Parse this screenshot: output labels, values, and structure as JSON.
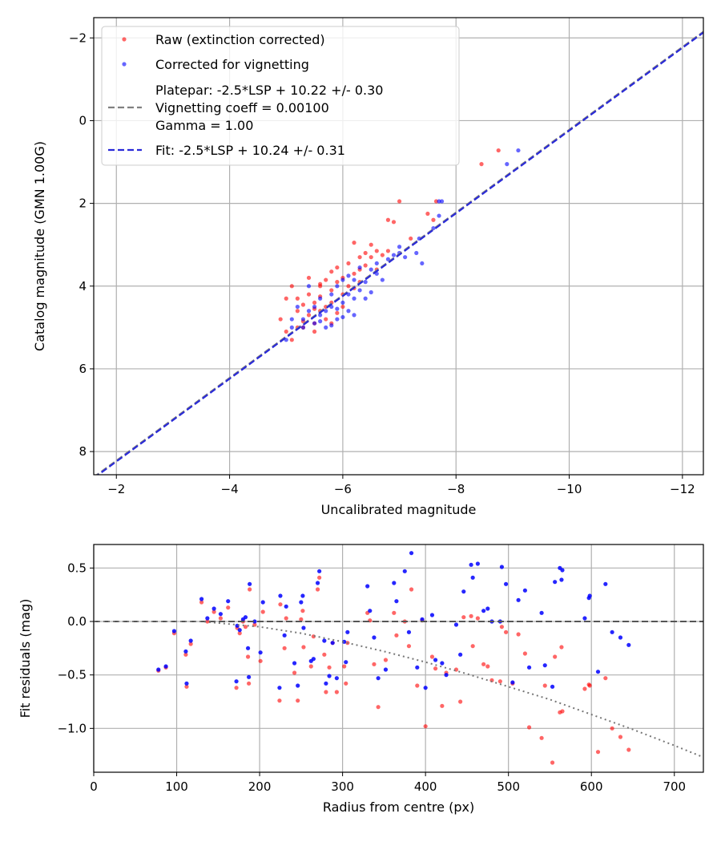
{
  "chart_data": [
    {
      "type": "scatter",
      "xlabel": "Uncalibrated magnitude",
      "ylabel": "Catalog magnitude (GMN 1.00G)",
      "xlim": [
        -1.6,
        -12.37
      ],
      "ylim": [
        8.56,
        -2.49
      ],
      "xticks": [
        -2,
        -4,
        -6,
        -8,
        -10,
        -12
      ],
      "xtick_labels": [
        "−2",
        "−4",
        "−6",
        "−8",
        "−10",
        "−12"
      ],
      "yticks": [
        -2,
        0,
        2,
        4,
        6,
        8
      ],
      "ytick_labels": [
        "−2",
        "0",
        "2",
        "4",
        "6",
        "8"
      ],
      "grid": true,
      "legend_position": "top-left",
      "legend": {
        "raw": "Raw (extinction corrected)",
        "corrected": "Corrected for vignetting",
        "platepar_1": "Platepar: -2.5*LSP + 10.22 +/- 0.30",
        "platepar_2": "Vignetting coeff = 0.00100",
        "platepar_3": "Gamma = 1.00",
        "fit": "Fit: -2.5*LSP + 10.24 +/- 0.31"
      },
      "colors": {
        "raw": "#ff0000",
        "corrected": "#0000ff",
        "platepar": "#808080",
        "fit": "#2a2ad8"
      },
      "platepar_line": {
        "slope": 1,
        "intercept": 10.22
      },
      "fit_line": {
        "slope": 1,
        "intercept": 10.24
      },
      "series": [
        {
          "name": "Raw (extinction corrected)",
          "points": [
            [
              -4.9,
              4.8
            ],
            [
              -5.0,
              4.3
            ],
            [
              -5.1,
              4.0
            ],
            [
              -5.1,
              5.3
            ],
            [
              -5.2,
              4.6
            ],
            [
              -5.3,
              4.85
            ],
            [
              -5.3,
              4.45
            ],
            [
              -5.3,
              5.0
            ],
            [
              -5.4,
              3.8
            ],
            [
              -5.4,
              4.2
            ],
            [
              -5.4,
              4.7
            ],
            [
              -5.5,
              4.4
            ],
            [
              -5.5,
              4.9
            ],
            [
              -5.5,
              5.1
            ],
            [
              -5.6,
              4.25
            ],
            [
              -5.6,
              4.6
            ],
            [
              -5.6,
              3.95
            ],
            [
              -5.7,
              4.5
            ],
            [
              -5.7,
              3.85
            ],
            [
              -5.7,
              4.8
            ],
            [
              -5.8,
              3.65
            ],
            [
              -5.8,
              4.1
            ],
            [
              -5.8,
              4.4
            ],
            [
              -5.9,
              3.55
            ],
            [
              -5.9,
              3.9
            ],
            [
              -5.9,
              4.65
            ],
            [
              -6.0,
              3.8
            ],
            [
              -6.0,
              4.2
            ],
            [
              -6.1,
              3.45
            ],
            [
              -6.1,
              4.0
            ],
            [
              -6.2,
              3.7
            ],
            [
              -6.2,
              4.05
            ],
            [
              -6.3,
              3.3
            ],
            [
              -6.3,
              3.6
            ],
            [
              -6.4,
              3.2
            ],
            [
              -6.4,
              3.5
            ],
            [
              -6.5,
              3.3
            ],
            [
              -6.6,
              3.15
            ],
            [
              -6.6,
              3.6
            ],
            [
              -6.7,
              3.25
            ],
            [
              -6.8,
              3.15
            ],
            [
              -6.2,
              2.95
            ],
            [
              -6.5,
              3.0
            ],
            [
              -6.8,
              2.4
            ],
            [
              -6.9,
              2.45
            ],
            [
              -7.0,
              1.95
            ],
            [
              -7.2,
              2.85
            ],
            [
              -7.5,
              2.25
            ],
            [
              -7.6,
              2.4
            ],
            [
              -7.65,
              1.95
            ],
            [
              -8.45,
              1.05
            ],
            [
              -8.75,
              0.72
            ],
            [
              -5.0,
              5.1
            ],
            [
              -5.2,
              5.0
            ],
            [
              -5.6,
              4.0
            ],
            [
              -5.8,
              4.9
            ],
            [
              -6.0,
              4.5
            ],
            [
              -6.3,
              3.9
            ],
            [
              -5.5,
              4.55
            ],
            [
              -5.2,
              4.3
            ]
          ]
        },
        {
          "name": "Corrected for vignetting",
          "points": [
            [
              -5.0,
              5.3
            ],
            [
              -5.1,
              4.8
            ],
            [
              -5.2,
              4.5
            ],
            [
              -5.3,
              4.8
            ],
            [
              -5.4,
              4.6
            ],
            [
              -5.5,
              4.9
            ],
            [
              -5.5,
              4.5
            ],
            [
              -5.6,
              4.3
            ],
            [
              -5.6,
              4.7
            ],
            [
              -5.7,
              4.6
            ],
            [
              -5.7,
              5.0
            ],
            [
              -5.8,
              4.2
            ],
            [
              -5.8,
              4.5
            ],
            [
              -5.9,
              4.0
            ],
            [
              -5.9,
              4.8
            ],
            [
              -6.0,
              4.4
            ],
            [
              -6.0,
              3.85
            ],
            [
              -6.1,
              4.2
            ],
            [
              -6.1,
              4.6
            ],
            [
              -6.2,
              3.85
            ],
            [
              -6.2,
              4.3
            ],
            [
              -6.3,
              3.55
            ],
            [
              -6.3,
              4.1
            ],
            [
              -6.4,
              3.9
            ],
            [
              -6.5,
              3.6
            ],
            [
              -6.5,
              4.15
            ],
            [
              -6.6,
              3.45
            ],
            [
              -6.7,
              3.85
            ],
            [
              -6.8,
              3.35
            ],
            [
              -6.9,
              3.25
            ],
            [
              -7.0,
              3.2
            ],
            [
              -7.1,
              3.3
            ],
            [
              -7.3,
              3.2
            ],
            [
              -7.4,
              3.45
            ],
            [
              -7.0,
              3.05
            ],
            [
              -7.35,
              2.85
            ],
            [
              -7.6,
              2.6
            ],
            [
              -7.7,
              2.3
            ],
            [
              -7.7,
              1.95
            ],
            [
              -7.75,
              1.95
            ],
            [
              -8.9,
              1.05
            ],
            [
              -9.1,
              0.72
            ],
            [
              -5.4,
              4.0
            ],
            [
              -5.3,
              5.0
            ],
            [
              -5.9,
              4.55
            ],
            [
              -6.1,
              3.75
            ],
            [
              -6.4,
              4.3
            ],
            [
              -5.1,
              5.0
            ],
            [
              -5.6,
              4.85
            ],
            [
              -6.2,
              4.7
            ],
            [
              -5.8,
              4.95
            ],
            [
              -6.6,
              3.7
            ],
            [
              -6.0,
              4.75
            ]
          ]
        }
      ]
    },
    {
      "type": "scatter",
      "xlabel": "Radius from centre (px)",
      "ylabel": "Fit residuals (mag)",
      "xlim": [
        0,
        735
      ],
      "ylim": [
        -1.41,
        0.72
      ],
      "xticks": [
        0,
        100,
        200,
        300,
        400,
        500,
        600,
        700
      ],
      "xtick_labels": [
        "0",
        "100",
        "200",
        "300",
        "400",
        "500",
        "600",
        "700"
      ],
      "yticks": [
        0.5,
        0.0,
        -0.5,
        -1.0
      ],
      "ytick_labels": [
        "0.5",
        "0.0",
        "−0.5",
        "−1.0"
      ],
      "grid": true,
      "zero_line": 0,
      "vignetting_curve": [
        [
          0,
          0
        ],
        [
          130,
          0
        ],
        [
          200,
          -0.05
        ],
        [
          250,
          -0.11
        ],
        [
          300,
          -0.19
        ],
        [
          350,
          -0.28
        ],
        [
          400,
          -0.38
        ],
        [
          450,
          -0.49
        ],
        [
          500,
          -0.61
        ],
        [
          550,
          -0.73
        ],
        [
          600,
          -0.87
        ],
        [
          650,
          -1.01
        ],
        [
          700,
          -1.16
        ],
        [
          735,
          -1.27
        ]
      ],
      "series_columns": [
        "radius",
        "raw_residual",
        "corrected_residual"
      ],
      "points": [
        [
          78,
          -0.46,
          -0.45
        ],
        [
          87,
          -0.43,
          -0.42
        ],
        [
          97,
          -0.11,
          -0.09
        ],
        [
          111,
          -0.31,
          -0.28
        ],
        [
          112,
          -0.61,
          -0.58
        ],
        [
          117,
          -0.21,
          -0.18
        ],
        [
          130,
          0.18,
          0.21
        ],
        [
          137,
          0.0,
          0.03
        ],
        [
          145,
          0.09,
          0.12
        ],
        [
          153,
          0.03,
          0.07
        ],
        [
          162,
          0.13,
          0.19
        ],
        [
          172,
          -0.62,
          -0.56
        ],
        [
          173,
          -0.06,
          -0.04
        ],
        [
          176,
          -0.11,
          -0.08
        ],
        [
          180,
          0.0,
          0.02
        ],
        [
          183,
          -0.05,
          0.04
        ],
        [
          186,
          -0.33,
          -0.25
        ],
        [
          187,
          -0.58,
          -0.52
        ],
        [
          188,
          0.3,
          0.35
        ],
        [
          194,
          -0.03,
          0.0
        ],
        [
          201,
          -0.37,
          -0.29
        ],
        [
          204,
          0.09,
          0.18
        ],
        [
          224,
          -0.74,
          -0.62
        ],
        [
          225,
          0.16,
          0.24
        ],
        [
          230,
          -0.25,
          -0.13
        ],
        [
          232,
          0.03,
          0.14
        ],
        [
          242,
          -0.48,
          -0.39
        ],
        [
          246,
          -0.74,
          -0.6
        ],
        [
          250,
          0.02,
          0.18
        ],
        [
          252,
          0.1,
          0.24
        ],
        [
          253,
          -0.24,
          -0.06
        ],
        [
          262,
          -0.42,
          -0.37
        ],
        [
          265,
          -0.14,
          -0.35
        ],
        [
          270,
          0.3,
          0.36
        ],
        [
          272,
          0.41,
          0.47
        ],
        [
          278,
          -0.31,
          -0.18
        ],
        [
          280,
          -0.66,
          -0.58
        ],
        [
          284,
          -0.43,
          -0.51
        ],
        [
          288,
          -0.2,
          -0.2
        ],
        [
          293,
          -0.66,
          -0.53
        ],
        [
          302,
          -0.42,
          -0.19
        ],
        [
          304,
          -0.58,
          -0.38
        ],
        [
          306,
          -0.2,
          -0.1
        ],
        [
          330,
          0.08,
          0.33
        ],
        [
          333,
          0.01,
          0.1
        ],
        [
          338,
          -0.4,
          -0.15
        ],
        [
          343,
          -0.8,
          -0.53
        ],
        [
          352,
          -0.36,
          -0.45
        ],
        [
          362,
          0.08,
          0.36
        ],
        [
          365,
          -0.13,
          0.19
        ],
        [
          375,
          0.0,
          0.47
        ],
        [
          380,
          -0.23,
          -0.1
        ],
        [
          383,
          0.3,
          0.64
        ],
        [
          390,
          -0.6,
          -0.43
        ],
        [
          396,
          0.01,
          0.02
        ],
        [
          400,
          -0.98,
          -0.62
        ],
        [
          408,
          -0.33,
          0.06
        ],
        [
          412,
          -0.44,
          -0.36
        ],
        [
          420,
          -0.79,
          -0.39
        ],
        [
          425,
          -0.48,
          -0.5
        ],
        [
          437,
          -0.45,
          -0.03
        ],
        [
          442,
          -0.75,
          -0.31
        ],
        [
          446,
          0.04,
          0.28
        ],
        [
          455,
          0.05,
          0.53
        ],
        [
          457,
          -0.23,
          0.41
        ],
        [
          463,
          0.03,
          0.54
        ],
        [
          470,
          -0.4,
          0.1
        ],
        [
          475,
          -0.42,
          0.12
        ],
        [
          480,
          -0.55,
          0.0
        ],
        [
          490,
          -0.56,
          0.0
        ],
        [
          492,
          -0.05,
          0.51
        ],
        [
          497,
          -0.1,
          0.35
        ],
        [
          505,
          -0.58,
          -0.57
        ],
        [
          512,
          -0.12,
          0.2
        ],
        [
          520,
          -0.3,
          0.29
        ],
        [
          525,
          -0.99,
          -0.43
        ],
        [
          540,
          -1.09,
          0.08
        ],
        [
          544,
          -0.6,
          -0.41
        ],
        [
          553,
          -1.32,
          -0.61
        ],
        [
          556,
          -0.33,
          0.37
        ],
        [
          562,
          -0.85,
          0.5
        ],
        [
          564,
          -0.24,
          0.39
        ],
        [
          565,
          -0.84,
          0.48
        ],
        [
          592,
          -0.63,
          0.03
        ],
        [
          597,
          -0.59,
          0.22
        ],
        [
          598,
          -0.6,
          0.24
        ],
        [
          608,
          -1.22,
          -0.47
        ],
        [
          617,
          -0.53,
          0.35
        ],
        [
          625,
          -1.0,
          -0.1
        ],
        [
          635,
          -1.08,
          -0.15
        ],
        [
          645,
          -1.2,
          -0.22
        ]
      ]
    }
  ]
}
